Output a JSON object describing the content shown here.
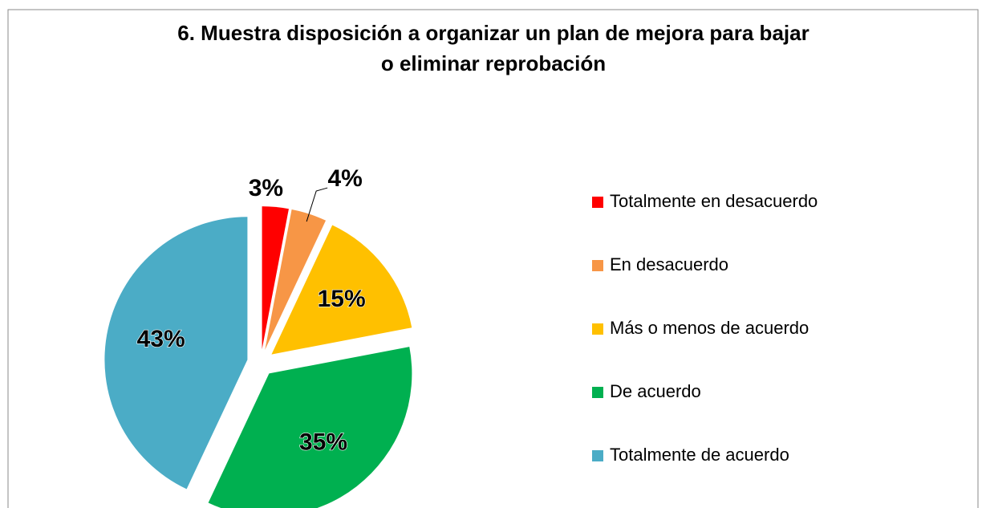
{
  "chart_data": {
    "type": "pie",
    "title": "6. Muestra disposición a organizar un plan de mejora para bajar o eliminar reprobación",
    "categories": [
      "Totalmente en desacuerdo",
      "En desacuerdo",
      "Más o menos de acuerdo",
      "De acuerdo",
      "Totalmente de acuerdo"
    ],
    "values": [
      3,
      4,
      15,
      35,
      43
    ],
    "value_labels": [
      "3%",
      "4%",
      "15%",
      "35%",
      "43%"
    ],
    "colors": [
      "#ff0000",
      "#f79646",
      "#ffc000",
      "#00b050",
      "#4bacc6"
    ],
    "legend": "right"
  }
}
